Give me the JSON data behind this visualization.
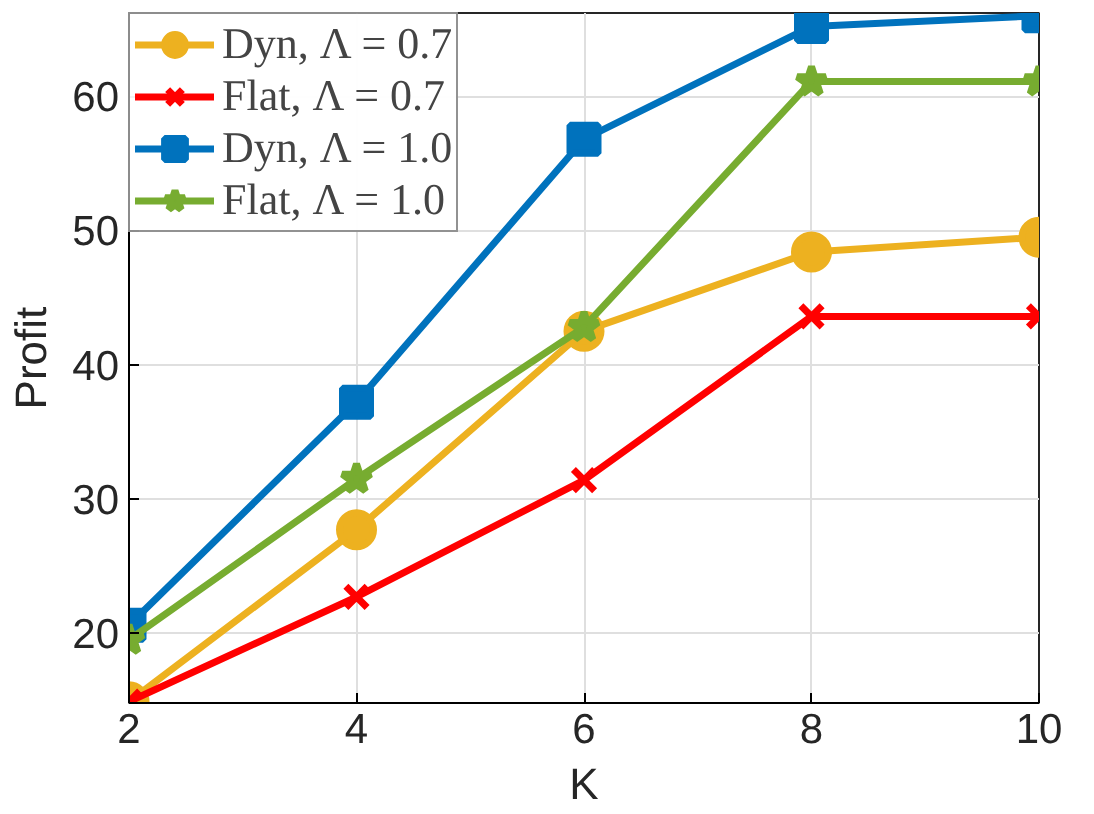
{
  "chart_data": {
    "type": "line",
    "xlabel": "K",
    "ylabel": "Profit",
    "x": [
      2,
      4,
      6,
      8,
      10
    ],
    "series": [
      {
        "name": "Dyn, Λ = 0.7",
        "color": "#edb120",
        "marker": "circle",
        "values": [
          14.9,
          27.7,
          42.5,
          48.4,
          49.5
        ]
      },
      {
        "name": "Flat, Λ = 0.7",
        "color": "#ff0000",
        "marker": "cross",
        "values": [
          14.9,
          22.7,
          31.4,
          43.6,
          43.6
        ]
      },
      {
        "name": "Dyn, Λ = 1.0",
        "color": "#0072bd",
        "marker": "square",
        "values": [
          20.6,
          37.2,
          56.8,
          65.2,
          66.0
        ]
      },
      {
        "name": "Flat, Λ = 1.0",
        "color": "#77ac30",
        "marker": "star",
        "values": [
          19.5,
          31.5,
          42.8,
          61.1,
          61.1
        ]
      }
    ],
    "xlim": [
      2,
      10
    ],
    "ylim": [
      14.8,
      66.2
    ],
    "xticks": [
      2,
      4,
      6,
      8,
      10
    ],
    "yticks": [
      20,
      30,
      40,
      50,
      60
    ],
    "grid": true,
    "legend": "top left",
    "line_style": "solid"
  }
}
